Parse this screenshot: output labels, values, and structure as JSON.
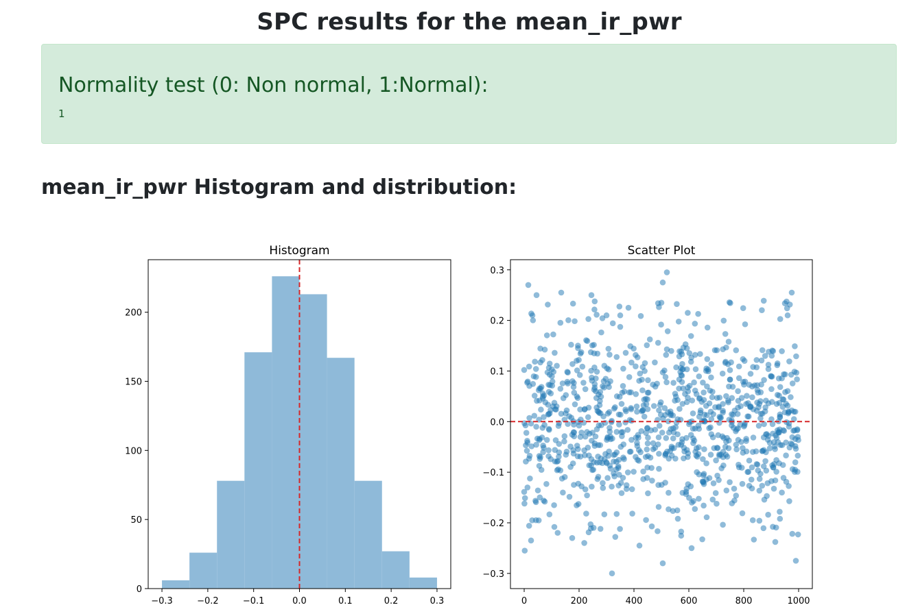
{
  "page": {
    "title": "SPC results for the mean_ir_pwr"
  },
  "normality": {
    "heading": "Normality test (0: Non normal, 1:Normal):",
    "value": "1"
  },
  "section": {
    "title": "mean_ir_pwr Histogram and distribution:"
  },
  "colors": {
    "bar": "#8fbad9",
    "point": "#1f77b4",
    "reference_line": "#d62728"
  },
  "chart_data": [
    {
      "type": "bar",
      "title": "Histogram",
      "xlabel": "",
      "ylabel": "",
      "xlim": [
        -0.33,
        0.33
      ],
      "ylim": [
        0,
        238
      ],
      "xticks": [
        -0.3,
        -0.2,
        -0.1,
        0.0,
        0.1,
        0.2,
        0.3
      ],
      "xtick_labels": [
        "−0.3",
        "−0.2",
        "−0.1",
        "0.0",
        "0.1",
        "0.2",
        "0.3"
      ],
      "yticks": [
        0,
        50,
        100,
        150,
        200
      ],
      "ytick_labels": [
        "0",
        "50",
        "100",
        "150",
        "200"
      ],
      "bin_edges": [
        -0.3,
        -0.24,
        -0.18,
        -0.12,
        -0.06,
        0.0,
        0.06,
        0.12,
        0.18,
        0.24,
        0.3
      ],
      "values": [
        6,
        26,
        78,
        171,
        226,
        213,
        167,
        78,
        27,
        8
      ],
      "reference_line": {
        "orientation": "vertical",
        "x": 0.0,
        "style": "dashed"
      }
    },
    {
      "type": "scatter",
      "title": "Scatter Plot",
      "xlabel": "",
      "ylabel": "",
      "xlim": [
        -50,
        1050
      ],
      "ylim": [
        -0.33,
        0.32
      ],
      "xticks": [
        0,
        200,
        400,
        600,
        800,
        1000
      ],
      "xtick_labels": [
        "0",
        "200",
        "400",
        "600",
        "800",
        "1000"
      ],
      "yticks": [
        -0.3,
        -0.2,
        -0.1,
        0.0,
        0.1,
        0.2,
        0.3
      ],
      "ytick_labels": [
        "−0.3",
        "−0.2",
        "−0.1",
        "0.0",
        "0.1",
        "0.2",
        "0.3"
      ],
      "n_points": 1000,
      "distribution": "normal, mean ≈ 0.0, sd ≈ 0.1",
      "points_sample": [
        [
          15,
          0.27
        ],
        [
          45,
          0.25
        ],
        [
          135,
          0.255
        ],
        [
          245,
          0.25
        ],
        [
          520,
          0.295
        ],
        [
          505,
          0.275
        ],
        [
          500,
          0.235
        ],
        [
          975,
          0.255
        ],
        [
          2,
          -0.255
        ],
        [
          25,
          -0.235
        ],
        [
          320,
          -0.3
        ],
        [
          505,
          -0.28
        ],
        [
          990,
          -0.275
        ],
        [
          420,
          -0.245
        ],
        [
          610,
          -0.25
        ],
        [
          175,
          -0.23
        ],
        [
          30,
          0.21
        ],
        [
          960,
          0.21
        ],
        [
          300,
          0.21
        ],
        [
          350,
          0.21
        ]
      ],
      "reference_line": {
        "orientation": "horizontal",
        "y": 0.0,
        "style": "dashed"
      }
    }
  ]
}
